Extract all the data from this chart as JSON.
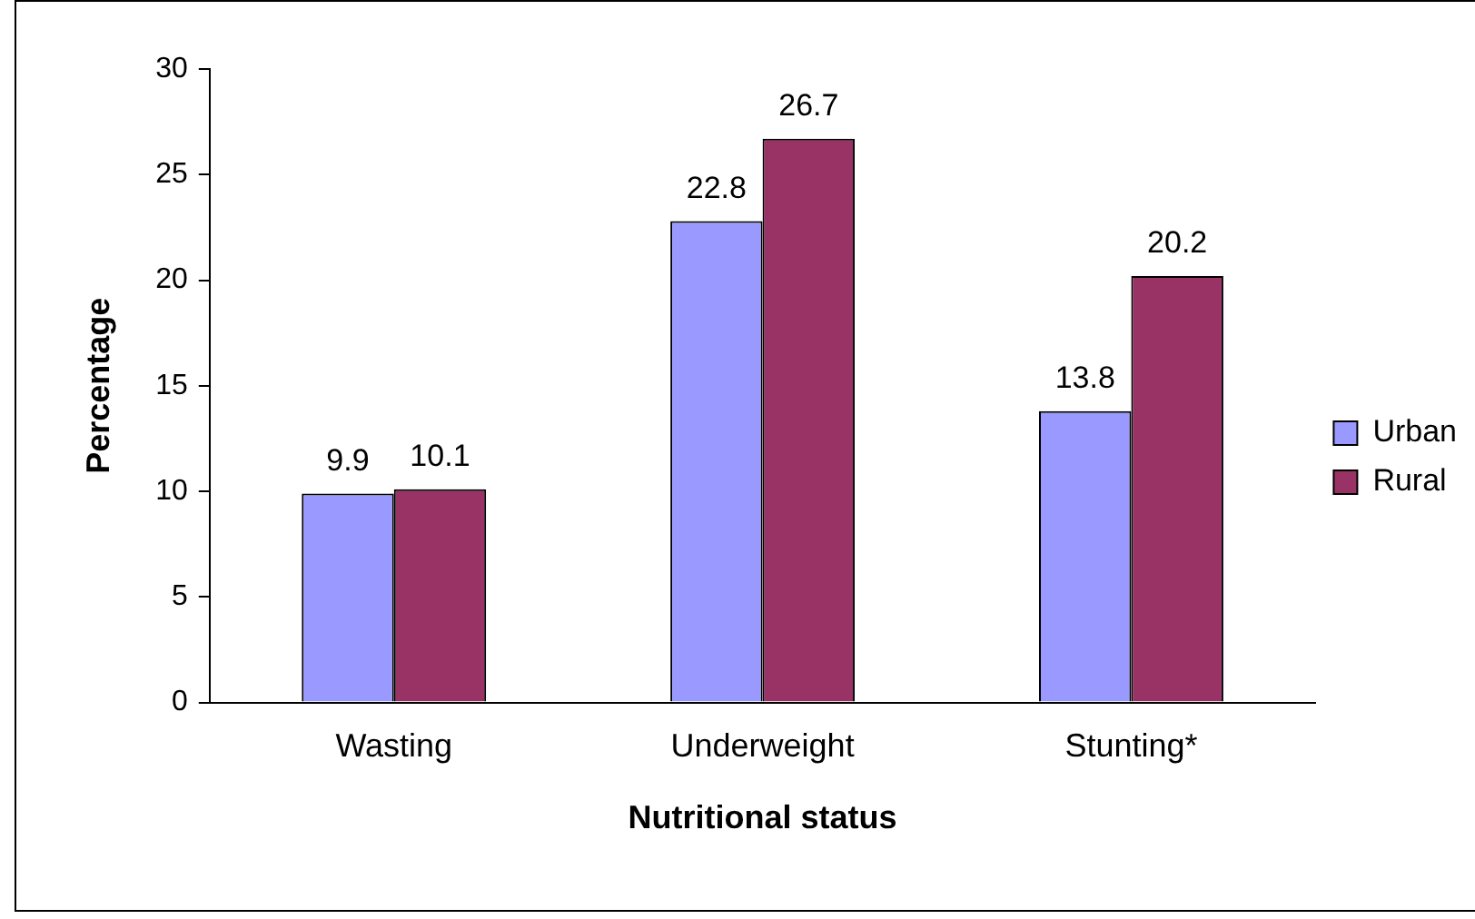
{
  "chart_data": {
    "type": "bar",
    "xlabel": "Nutritional status",
    "ylabel": "Percentage",
    "categories": [
      "Wasting",
      "Underweight",
      "Stunting*"
    ],
    "series": [
      {
        "name": "Urban",
        "color": "#9999ff",
        "values": [
          9.9,
          22.8,
          13.8
        ]
      },
      {
        "name": "Rural",
        "color": "#993366",
        "values": [
          10.1,
          26.7,
          20.2
        ]
      }
    ],
    "ylim": [
      0,
      30
    ],
    "yticks": [
      0,
      5,
      10,
      15,
      20,
      25,
      30
    ],
    "grid": false,
    "legend": "right",
    "data_labels": true
  }
}
